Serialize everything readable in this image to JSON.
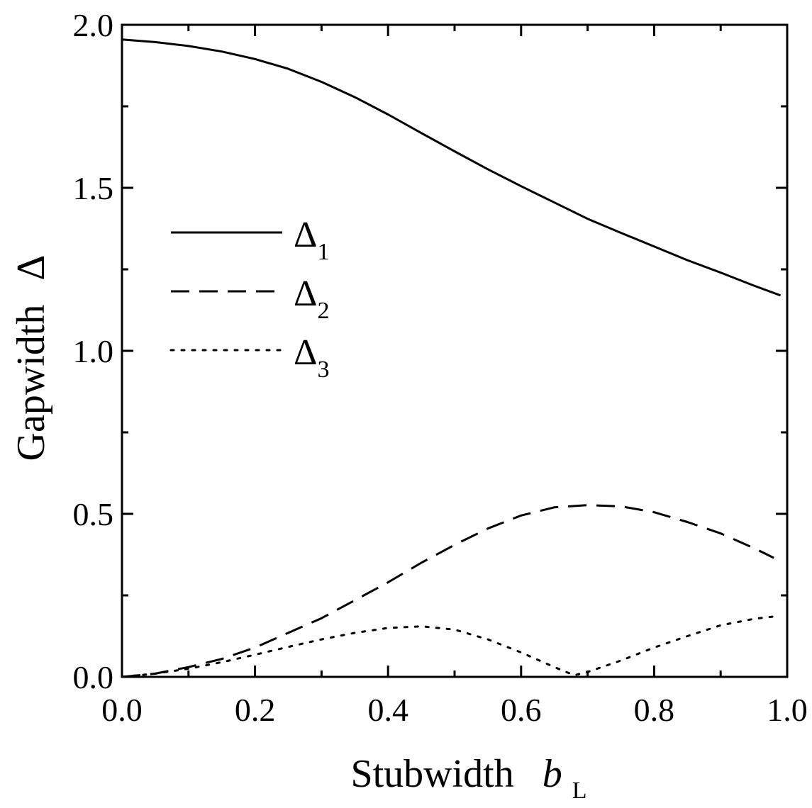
{
  "chart_data": {
    "type": "line",
    "xlabel": "Stubwidth",
    "xlabel_var": "b",
    "xlabel_sub": "L",
    "ylabel": "Gapwidth",
    "ylabel_symbol": "Δ",
    "xlim": [
      0,
      1
    ],
    "ylim": [
      0,
      2
    ],
    "x_ticks": [
      "0.0",
      "0.2",
      "0.4",
      "0.6",
      "0.8",
      "1.0"
    ],
    "y_ticks": [
      "0.0",
      "0.5",
      "1.0",
      "1.5",
      "2.0"
    ],
    "grid": false,
    "legend_position": "upper-left",
    "series": [
      {
        "name": "Δ",
        "name_sub": "1",
        "style": "solid",
        "x": [
          0.0,
          0.05,
          0.1,
          0.15,
          0.2,
          0.25,
          0.3,
          0.35,
          0.4,
          0.45,
          0.5,
          0.55,
          0.6,
          0.65,
          0.7,
          0.75,
          0.8,
          0.85,
          0.9,
          0.95,
          0.99
        ],
        "y": [
          1.955,
          1.947,
          1.935,
          1.918,
          1.895,
          1.865,
          1.825,
          1.778,
          1.725,
          1.668,
          1.612,
          1.557,
          1.505,
          1.455,
          1.405,
          1.362,
          1.32,
          1.278,
          1.24,
          1.2,
          1.17
        ]
      },
      {
        "name": "Δ",
        "name_sub": "2",
        "style": "dashed",
        "x": [
          0.0,
          0.05,
          0.1,
          0.15,
          0.2,
          0.25,
          0.3,
          0.35,
          0.4,
          0.45,
          0.5,
          0.55,
          0.6,
          0.65,
          0.7,
          0.75,
          0.8,
          0.85,
          0.9,
          0.95,
          0.98
        ],
        "y": [
          0.0,
          0.01,
          0.03,
          0.055,
          0.09,
          0.135,
          0.18,
          0.235,
          0.29,
          0.35,
          0.405,
          0.455,
          0.495,
          0.52,
          0.527,
          0.523,
          0.505,
          0.475,
          0.44,
          0.395,
          0.365
        ]
      },
      {
        "name": "Δ",
        "name_sub": "3",
        "style": "dotted",
        "x": [
          0.0,
          0.05,
          0.1,
          0.15,
          0.2,
          0.25,
          0.3,
          0.35,
          0.4,
          0.45,
          0.5,
          0.55,
          0.6,
          0.65,
          0.68,
          0.7,
          0.75,
          0.8,
          0.85,
          0.9,
          0.95,
          0.98
        ],
        "y": [
          0.0,
          0.01,
          0.025,
          0.045,
          0.068,
          0.092,
          0.115,
          0.135,
          0.15,
          0.155,
          0.145,
          0.115,
          0.075,
          0.03,
          0.005,
          0.015,
          0.05,
          0.09,
          0.125,
          0.158,
          0.178,
          0.185
        ]
      }
    ]
  }
}
